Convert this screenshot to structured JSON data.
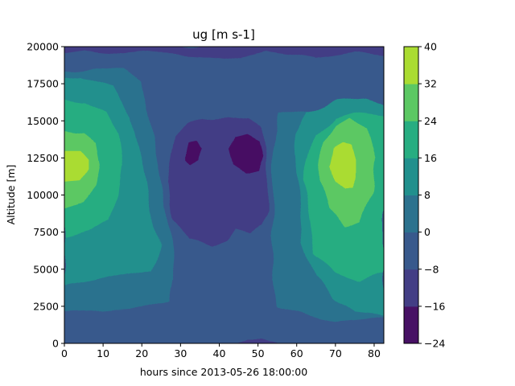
{
  "chart_data": {
    "type": "heatmap",
    "subtype": "filled-contour",
    "title": "ug [m s-1]",
    "xlabel": "hours since 2013-05-26 18:00:00",
    "ylabel": "Altitude [m]",
    "xlim": [
      0,
      82.5
    ],
    "ylim": [
      0,
      20000
    ],
    "xticks": [
      "0",
      "10",
      "20",
      "30",
      "40",
      "50",
      "60",
      "70",
      "80"
    ],
    "yticks": [
      "0",
      "2500",
      "5000",
      "7500",
      "10000",
      "12500",
      "15000",
      "17500",
      "20000"
    ],
    "colorbar": {
      "levels": [
        -24,
        -16,
        -8,
        0,
        8,
        16,
        24,
        32,
        40
      ],
      "tick_labels": [
        "−24",
        "−16",
        "−8",
        "0",
        "8",
        "16",
        "24",
        "32",
        "40"
      ],
      "colors": [
        "#471164",
        "#433e85",
        "#38598c",
        "#2c728e",
        "#21908d",
        "#27ad81",
        "#5cc863",
        "#aadc32",
        "#dde318"
      ]
    },
    "grid": false,
    "features": [
      {
        "name": "left jet maximum",
        "center_hours": 4,
        "center_altitude_m": 12000,
        "peak_range": [
          32,
          40
        ]
      },
      {
        "name": "right jet maximum",
        "center_hours": 73,
        "center_altitude_m": 12000,
        "peak_range": [
          32,
          40
        ]
      },
      {
        "name": "central easterly region",
        "hours_range": [
          27,
          52
        ],
        "altitude_range_m": [
          8500,
          15000
        ],
        "value_range": [
          -16,
          -8
        ]
      },
      {
        "name": "central minimum (left)",
        "center_hours": 34,
        "center_altitude_m": 12800,
        "value_range": [
          -24,
          -16
        ]
      },
      {
        "name": "central minimum (right)",
        "center_hours": 47,
        "center_altitude_m": 12800,
        "value_range": [
          -24,
          -16
        ]
      }
    ]
  }
}
